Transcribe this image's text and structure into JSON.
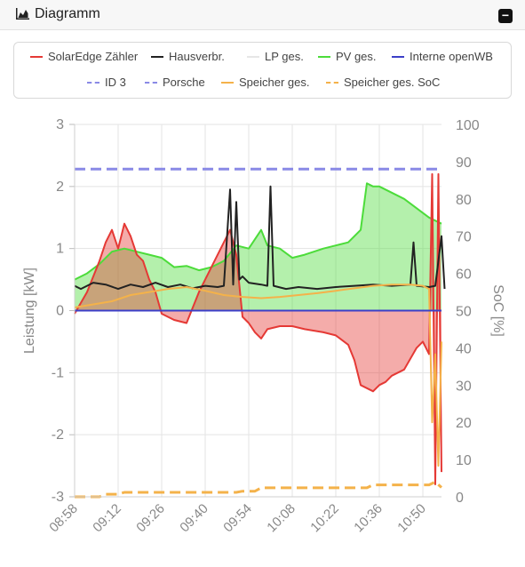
{
  "header": {
    "title": "Diagramm",
    "collapse_symbol": "−"
  },
  "legend": [
    {
      "label": "SolarEdge Zähler",
      "color": "#e53935",
      "dashed": false
    },
    {
      "label": "Hausverbr.",
      "color": "#222222",
      "dashed": false
    },
    {
      "label": "LP ges.",
      "color": "#e6e6e6",
      "dashed": false
    },
    {
      "label": "PV ges.",
      "color": "#4cdc3a",
      "dashed": false
    },
    {
      "label": "Interne openWB",
      "color": "#3c3fc8",
      "dashed": false
    },
    {
      "label": "ID 3",
      "color": "#8a8ae6",
      "dashed": true
    },
    {
      "label": "Porsche",
      "color": "#8a8ae6",
      "dashed": true
    },
    {
      "label": "Speicher ges.",
      "color": "#f4b24a",
      "dashed": false
    },
    {
      "label": "Speicher ges. SoC",
      "color": "#f4b24a",
      "dashed": true
    }
  ],
  "chart_data": {
    "type": "area",
    "x_ticks": [
      "08:58",
      "09:12",
      "09:26",
      "09:40",
      "09:54",
      "10:08",
      "10:22",
      "10:36",
      "10:50"
    ],
    "y_left": {
      "label": "Leistung [kW]",
      "range": [
        -3,
        3
      ],
      "ticks": [
        "-3",
        "-2",
        "-1",
        "0",
        "1",
        "2",
        "3"
      ]
    },
    "y_right": {
      "label": "SoC [%]",
      "range": [
        0,
        100
      ],
      "ticks": [
        "0",
        "10",
        "20",
        "30",
        "40",
        "50",
        "60",
        "70",
        "80",
        "90",
        "100"
      ]
    },
    "grid": true,
    "series": [
      {
        "name": "PV ges.",
        "color": "#4cdc3a",
        "fill": true,
        "points": [
          [
            "08:58",
            0.5
          ],
          [
            "09:02",
            0.6
          ],
          [
            "09:06",
            0.75
          ],
          [
            "09:10",
            0.95
          ],
          [
            "09:14",
            1.0
          ],
          [
            "09:18",
            0.95
          ],
          [
            "09:22",
            0.9
          ],
          [
            "09:26",
            0.85
          ],
          [
            "09:30",
            0.7
          ],
          [
            "09:34",
            0.72
          ],
          [
            "09:38",
            0.65
          ],
          [
            "09:42",
            0.7
          ],
          [
            "09:46",
            0.8
          ],
          [
            "09:50",
            1.05
          ],
          [
            "09:54",
            1.0
          ],
          [
            "09:58",
            1.3
          ],
          [
            "10:00",
            1.05
          ],
          [
            "10:04",
            1.0
          ],
          [
            "10:08",
            0.85
          ],
          [
            "10:12",
            0.9
          ],
          [
            "10:18",
            1.0
          ],
          [
            "10:22",
            1.05
          ],
          [
            "10:26",
            1.1
          ],
          [
            "10:30",
            1.3
          ],
          [
            "10:32",
            2.05
          ],
          [
            "10:34",
            2.0
          ],
          [
            "10:36",
            2.0
          ],
          [
            "10:40",
            1.9
          ],
          [
            "10:44",
            1.8
          ],
          [
            "10:48",
            1.65
          ],
          [
            "10:52",
            1.5
          ],
          [
            "10:56",
            1.4
          ]
        ]
      },
      {
        "name": "SolarEdge Zähler",
        "color": "#e53935",
        "fill": true,
        "points": [
          [
            "08:58",
            -0.05
          ],
          [
            "09:02",
            0.3
          ],
          [
            "09:06",
            0.8
          ],
          [
            "09:08",
            1.1
          ],
          [
            "09:10",
            1.3
          ],
          [
            "09:12",
            1.0
          ],
          [
            "09:14",
            1.4
          ],
          [
            "09:16",
            1.2
          ],
          [
            "09:18",
            0.9
          ],
          [
            "09:20",
            0.8
          ],
          [
            "09:22",
            0.5
          ],
          [
            "09:24",
            0.3
          ],
          [
            "09:26",
            -0.05
          ],
          [
            "09:30",
            -0.15
          ],
          [
            "09:34",
            -0.2
          ],
          [
            "09:38",
            0.3
          ],
          [
            "09:42",
            0.7
          ],
          [
            "09:46",
            1.1
          ],
          [
            "09:48",
            1.3
          ],
          [
            "09:50",
            0.9
          ],
          [
            "09:52",
            -0.1
          ],
          [
            "09:54",
            -0.2
          ],
          [
            "09:56",
            -0.35
          ],
          [
            "09:58",
            -0.45
          ],
          [
            "10:00",
            -0.3
          ],
          [
            "10:04",
            -0.25
          ],
          [
            "10:08",
            -0.25
          ],
          [
            "10:12",
            -0.3
          ],
          [
            "10:18",
            -0.35
          ],
          [
            "10:22",
            -0.4
          ],
          [
            "10:26",
            -0.55
          ],
          [
            "10:28",
            -0.8
          ],
          [
            "10:30",
            -1.2
          ],
          [
            "10:32",
            -1.25
          ],
          [
            "10:34",
            -1.3
          ],
          [
            "10:36",
            -1.2
          ],
          [
            "10:38",
            -1.15
          ],
          [
            "10:40",
            -1.05
          ],
          [
            "10:42",
            -1.0
          ],
          [
            "10:44",
            -0.95
          ],
          [
            "10:48",
            -0.6
          ],
          [
            "10:50",
            -0.5
          ],
          [
            "10:52",
            -0.7
          ],
          [
            "10:53",
            2.2
          ],
          [
            "10:54",
            -2.8
          ],
          [
            "10:55",
            2.2
          ],
          [
            "10:56",
            -2.6
          ]
        ]
      },
      {
        "name": "Hausverbr.",
        "color": "#222222",
        "fill": false,
        "points": [
          [
            "08:58",
            0.4
          ],
          [
            "09:00",
            0.35
          ],
          [
            "09:04",
            0.45
          ],
          [
            "09:08",
            0.42
          ],
          [
            "09:12",
            0.35
          ],
          [
            "09:16",
            0.42
          ],
          [
            "09:20",
            0.38
          ],
          [
            "09:24",
            0.45
          ],
          [
            "09:28",
            0.38
          ],
          [
            "09:32",
            0.42
          ],
          [
            "09:36",
            0.36
          ],
          [
            "09:40",
            0.4
          ],
          [
            "09:44",
            0.38
          ],
          [
            "09:46",
            0.4
          ],
          [
            "09:48",
            1.95
          ],
          [
            "09:49",
            0.42
          ],
          [
            "09:50",
            1.75
          ],
          [
            "09:51",
            0.5
          ],
          [
            "09:52",
            0.55
          ],
          [
            "09:54",
            0.45
          ],
          [
            "09:58",
            0.42
          ],
          [
            "10:00",
            0.4
          ],
          [
            "10:01",
            2.0
          ],
          [
            "10:02",
            0.4
          ],
          [
            "10:06",
            0.35
          ],
          [
            "10:10",
            0.38
          ],
          [
            "10:16",
            0.35
          ],
          [
            "10:22",
            0.38
          ],
          [
            "10:28",
            0.4
          ],
          [
            "10:34",
            0.42
          ],
          [
            "10:40",
            0.4
          ],
          [
            "10:46",
            0.42
          ],
          [
            "10:47",
            1.1
          ],
          [
            "10:48",
            0.4
          ],
          [
            "10:52",
            0.38
          ],
          [
            "10:54",
            0.4
          ],
          [
            "10:56",
            1.2
          ],
          [
            "10:57",
            0.35
          ]
        ]
      },
      {
        "name": "Speicher ges.",
        "color": "#f4b24a",
        "fill": false,
        "points": [
          [
            "08:58",
            0.05
          ],
          [
            "09:04",
            0.1
          ],
          [
            "09:10",
            0.15
          ],
          [
            "09:16",
            0.25
          ],
          [
            "09:22",
            0.3
          ],
          [
            "09:28",
            0.35
          ],
          [
            "09:34",
            0.38
          ],
          [
            "09:40",
            0.32
          ],
          [
            "09:46",
            0.25
          ],
          [
            "09:52",
            0.22
          ],
          [
            "09:58",
            0.2
          ],
          [
            "10:04",
            0.22
          ],
          [
            "10:10",
            0.25
          ],
          [
            "10:16",
            0.28
          ],
          [
            "10:22",
            0.32
          ],
          [
            "10:28",
            0.36
          ],
          [
            "10:34",
            0.4
          ],
          [
            "10:40",
            0.42
          ],
          [
            "10:46",
            0.42
          ],
          [
            "10:50",
            0.4
          ],
          [
            "10:52",
            0.35
          ],
          [
            "10:53",
            -1.8
          ],
          [
            "10:54",
            -0.7
          ],
          [
            "10:55",
            -2.5
          ],
          [
            "10:56",
            -0.5
          ]
        ]
      },
      {
        "name": "Interne openWB",
        "color": "#3c3fc8",
        "fill": false,
        "points": [
          [
            "08:58",
            0.0
          ],
          [
            "10:56",
            0.0
          ]
        ]
      },
      {
        "name": "ID 3",
        "color": "#8a8ae6",
        "dashed": true,
        "axis": "right",
        "points": [
          [
            "08:58",
            88
          ],
          [
            "10:56",
            88
          ]
        ]
      },
      {
        "name": "Speicher ges. SoC",
        "color": "#f4b24a",
        "dashed": true,
        "axis": "right",
        "points": [
          [
            "08:58",
            0
          ],
          [
            "09:06",
            0
          ],
          [
            "09:08",
            0.7
          ],
          [
            "09:12",
            0.7
          ],
          [
            "09:14",
            1.2
          ],
          [
            "09:50",
            1.2
          ],
          [
            "09:52",
            1.5
          ],
          [
            "09:56",
            1.5
          ],
          [
            "09:58",
            2.4
          ],
          [
            "10:32",
            2.4
          ],
          [
            "10:34",
            3.2
          ],
          [
            "10:52",
            3.2
          ],
          [
            "10:54",
            4
          ],
          [
            "10:56",
            2.5
          ]
        ]
      }
    ]
  }
}
